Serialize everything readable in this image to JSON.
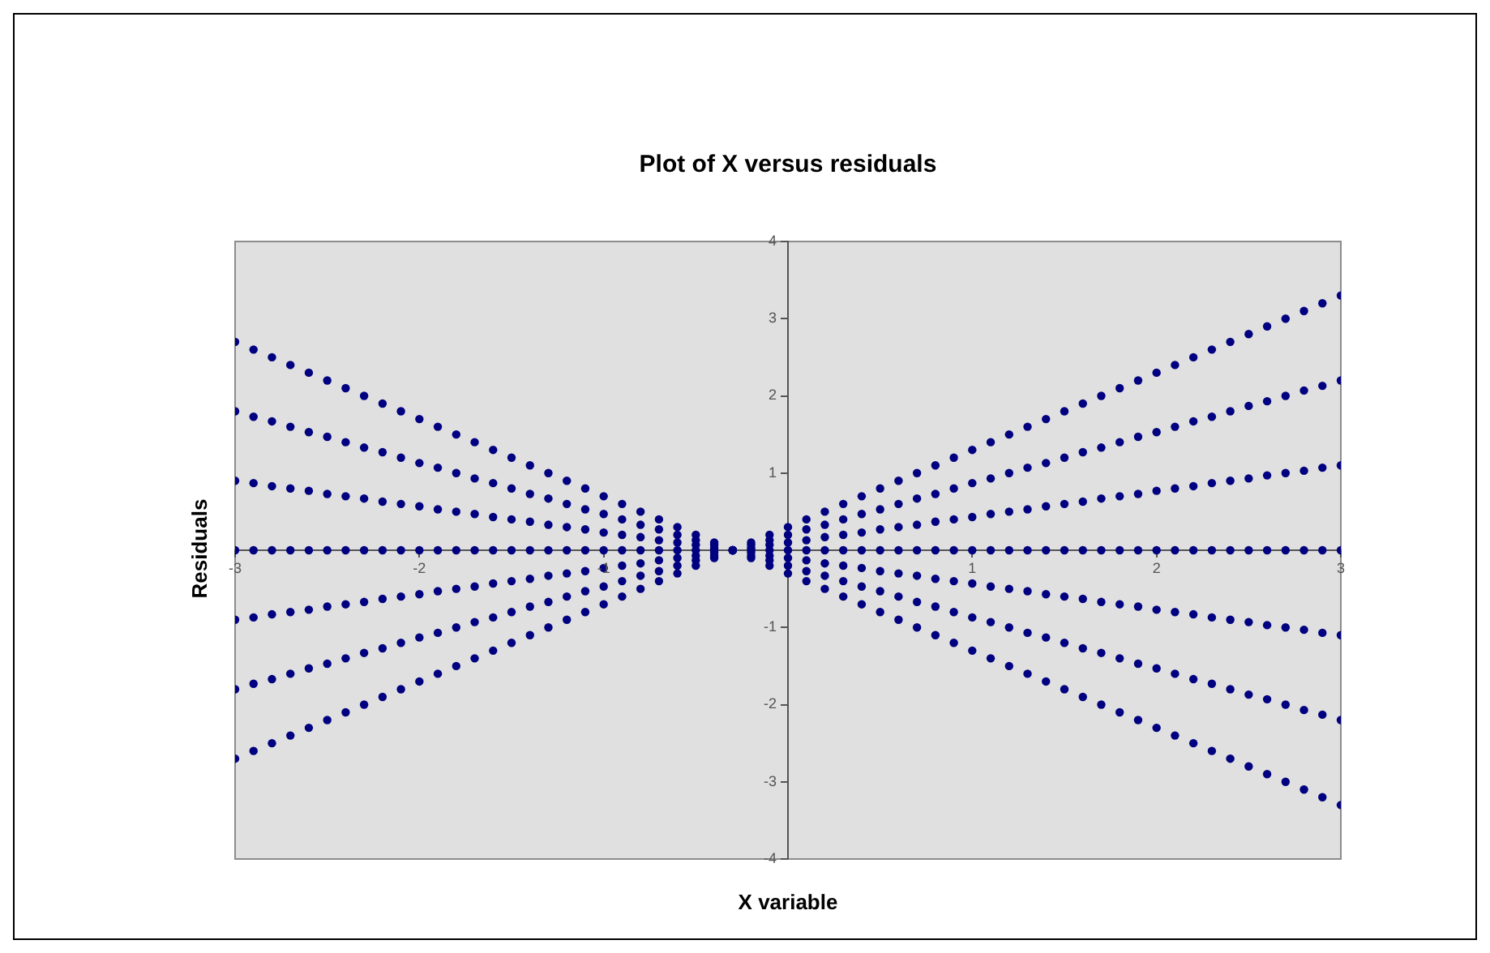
{
  "chart_data": {
    "type": "scatter",
    "title": "Plot of X versus residuals",
    "xlabel": "X variable",
    "ylabel": "Residuals",
    "marker": "circle",
    "legend": false,
    "grid": false,
    "xlim": [
      -3,
      3
    ],
    "xticks": [
      -3,
      -2,
      -1,
      1,
      2,
      3
    ],
    "ylim": [
      -4,
      4
    ],
    "yticks": [
      -4,
      -3,
      -2,
      -1,
      1,
      2,
      3,
      4
    ],
    "x": [
      -3,
      -2.9,
      -2.8,
      -2.7,
      -2.6,
      -2.5,
      -2.4,
      -2.3,
      -2.2,
      -2.1,
      -2,
      -1.9,
      -1.8,
      -1.7,
      -1.6,
      -1.5,
      -1.4,
      -1.3,
      -1.2,
      -1.1,
      -1,
      -0.9,
      -0.8,
      -0.7,
      -0.6,
      -0.5,
      -0.4,
      -0.3,
      -0.2,
      -0.1,
      0,
      0.1,
      0.2,
      0.3,
      0.4,
      0.5,
      0.6,
      0.7,
      0.8,
      0.9,
      1,
      1.1,
      1.2,
      1.3,
      1.4,
      1.5,
      1.6,
      1.7,
      1.8,
      1.9,
      2,
      2.1,
      2.2,
      2.3,
      2.4,
      2.5,
      2.6,
      2.7,
      2.8,
      2.9,
      3
    ],
    "series": [
      {
        "color": "#000080",
        "values": [
          -2.7,
          -2.6,
          -2.5,
          -2.4,
          -2.3,
          -2.2,
          -2.1,
          -2,
          -1.9,
          -1.8,
          -1.7,
          -1.6,
          -1.5,
          -1.4,
          -1.3,
          -1.2,
          -1.1,
          -1,
          -0.9,
          -0.8,
          -0.7,
          -0.6,
          -0.5,
          -0.4,
          -0.3,
          -0.2,
          -0.1,
          0,
          0.1,
          0.2,
          0.3,
          0.4,
          0.5,
          0.6,
          0.7,
          0.8,
          0.9,
          1,
          1.1,
          1.2,
          1.3,
          1.4,
          1.5,
          1.6,
          1.7,
          1.8,
          1.9,
          2,
          2.1,
          2.2,
          2.3,
          2.4,
          2.5,
          2.6,
          2.7,
          2.8,
          2.9,
          3,
          3.1,
          3.2,
          3.3
        ]
      },
      {
        "color": "#000080",
        "values": [
          -1.8,
          -1.73,
          -1.67,
          -1.6,
          -1.53,
          -1.47,
          -1.4,
          -1.33,
          -1.27,
          -1.2,
          -1.13,
          -1.07,
          -1,
          -0.93,
          -0.87,
          -0.8,
          -0.73,
          -0.67,
          -0.6,
          -0.53,
          -0.47,
          -0.4,
          -0.33,
          -0.27,
          -0.2,
          -0.13,
          -0.07,
          0,
          0.07,
          0.13,
          0.2,
          0.27,
          0.33,
          0.4,
          0.47,
          0.53,
          0.6,
          0.67,
          0.73,
          0.8,
          0.87,
          0.93,
          1,
          1.07,
          1.13,
          1.2,
          1.27,
          1.33,
          1.4,
          1.47,
          1.53,
          1.6,
          1.67,
          1.73,
          1.8,
          1.87,
          1.93,
          2,
          2.07,
          2.13,
          2.2
        ]
      },
      {
        "color": "#000080",
        "values": [
          -0.9,
          -0.87,
          -0.83,
          -0.8,
          -0.77,
          -0.73,
          -0.7,
          -0.67,
          -0.63,
          -0.6,
          -0.57,
          -0.53,
          -0.5,
          -0.47,
          -0.43,
          -0.4,
          -0.37,
          -0.33,
          -0.3,
          -0.27,
          -0.23,
          -0.2,
          -0.17,
          -0.13,
          -0.1,
          -0.07,
          -0.03,
          0,
          0.03,
          0.07,
          0.1,
          0.13,
          0.17,
          0.2,
          0.23,
          0.27,
          0.3,
          0.33,
          0.37,
          0.4,
          0.43,
          0.47,
          0.5,
          0.53,
          0.57,
          0.6,
          0.63,
          0.67,
          0.7,
          0.73,
          0.77,
          0.8,
          0.83,
          0.87,
          0.9,
          0.93,
          0.97,
          1,
          1.03,
          1.07,
          1.1
        ]
      },
      {
        "color": "#000080",
        "values": [
          0,
          0,
          0,
          0,
          0,
          0,
          0,
          0,
          0,
          0,
          0,
          0,
          0,
          0,
          0,
          0,
          0,
          0,
          0,
          0,
          0,
          0,
          0,
          0,
          0,
          0,
          0,
          0,
          0,
          0,
          0,
          0,
          0,
          0,
          0,
          0,
          0,
          0,
          0,
          0,
          0,
          0,
          0,
          0,
          0,
          0,
          0,
          0,
          0,
          0,
          0,
          0,
          0,
          0,
          0,
          0,
          0,
          0,
          0,
          0,
          0
        ]
      },
      {
        "color": "#000080",
        "values": [
          0.9,
          0.87,
          0.83,
          0.8,
          0.77,
          0.73,
          0.7,
          0.67,
          0.63,
          0.6,
          0.57,
          0.53,
          0.5,
          0.47,
          0.43,
          0.4,
          0.37,
          0.33,
          0.3,
          0.27,
          0.23,
          0.2,
          0.17,
          0.13,
          0.1,
          0.07,
          0.03,
          0,
          -0.03,
          -0.07,
          -0.1,
          -0.13,
          -0.17,
          -0.2,
          -0.23,
          -0.27,
          -0.3,
          -0.33,
          -0.37,
          -0.4,
          -0.43,
          -0.47,
          -0.5,
          -0.53,
          -0.57,
          -0.6,
          -0.63,
          -0.67,
          -0.7,
          -0.73,
          -0.77,
          -0.8,
          -0.83,
          -0.87,
          -0.9,
          -0.93,
          -0.97,
          -1,
          -1.03,
          -1.07,
          -1.1
        ]
      },
      {
        "color": "#000080",
        "values": [
          1.8,
          1.73,
          1.67,
          1.6,
          1.53,
          1.47,
          1.4,
          1.33,
          1.27,
          1.2,
          1.13,
          1.07,
          1,
          0.93,
          0.87,
          0.8,
          0.73,
          0.67,
          0.6,
          0.53,
          0.47,
          0.4,
          0.33,
          0.27,
          0.2,
          0.13,
          0.07,
          0,
          -0.07,
          -0.13,
          -0.2,
          -0.27,
          -0.33,
          -0.4,
          -0.47,
          -0.53,
          -0.6,
          -0.67,
          -0.73,
          -0.8,
          -0.87,
          -0.93,
          -1,
          -1.07,
          -1.13,
          -1.2,
          -1.27,
          -1.33,
          -1.4,
          -1.47,
          -1.53,
          -1.6,
          -1.67,
          -1.73,
          -1.8,
          -1.87,
          -1.93,
          -2,
          -2.07,
          -2.13,
          -2.2
        ]
      },
      {
        "color": "#000080",
        "values": [
          2.7,
          2.6,
          2.5,
          2.4,
          2.3,
          2.2,
          2.1,
          2,
          1.9,
          1.8,
          1.7,
          1.6,
          1.5,
          1.4,
          1.3,
          1.2,
          1.1,
          1,
          0.9,
          0.8,
          0.7,
          0.6,
          0.5,
          0.4,
          0.3,
          0.2,
          0.1,
          0,
          -0.1,
          -0.2,
          -0.3,
          -0.4,
          -0.5,
          -0.6,
          -0.7,
          -0.8,
          -0.9,
          -1,
          -1.1,
          -1.2,
          -1.3,
          -1.4,
          -1.5,
          -1.6,
          -1.7,
          -1.8,
          -1.9,
          -2,
          -2.1,
          -2.2,
          -2.3,
          -2.4,
          -2.5,
          -2.6,
          -2.7,
          -2.8,
          -2.9,
          -3,
          -3.1,
          -3.2,
          -3.3
        ]
      }
    ]
  }
}
